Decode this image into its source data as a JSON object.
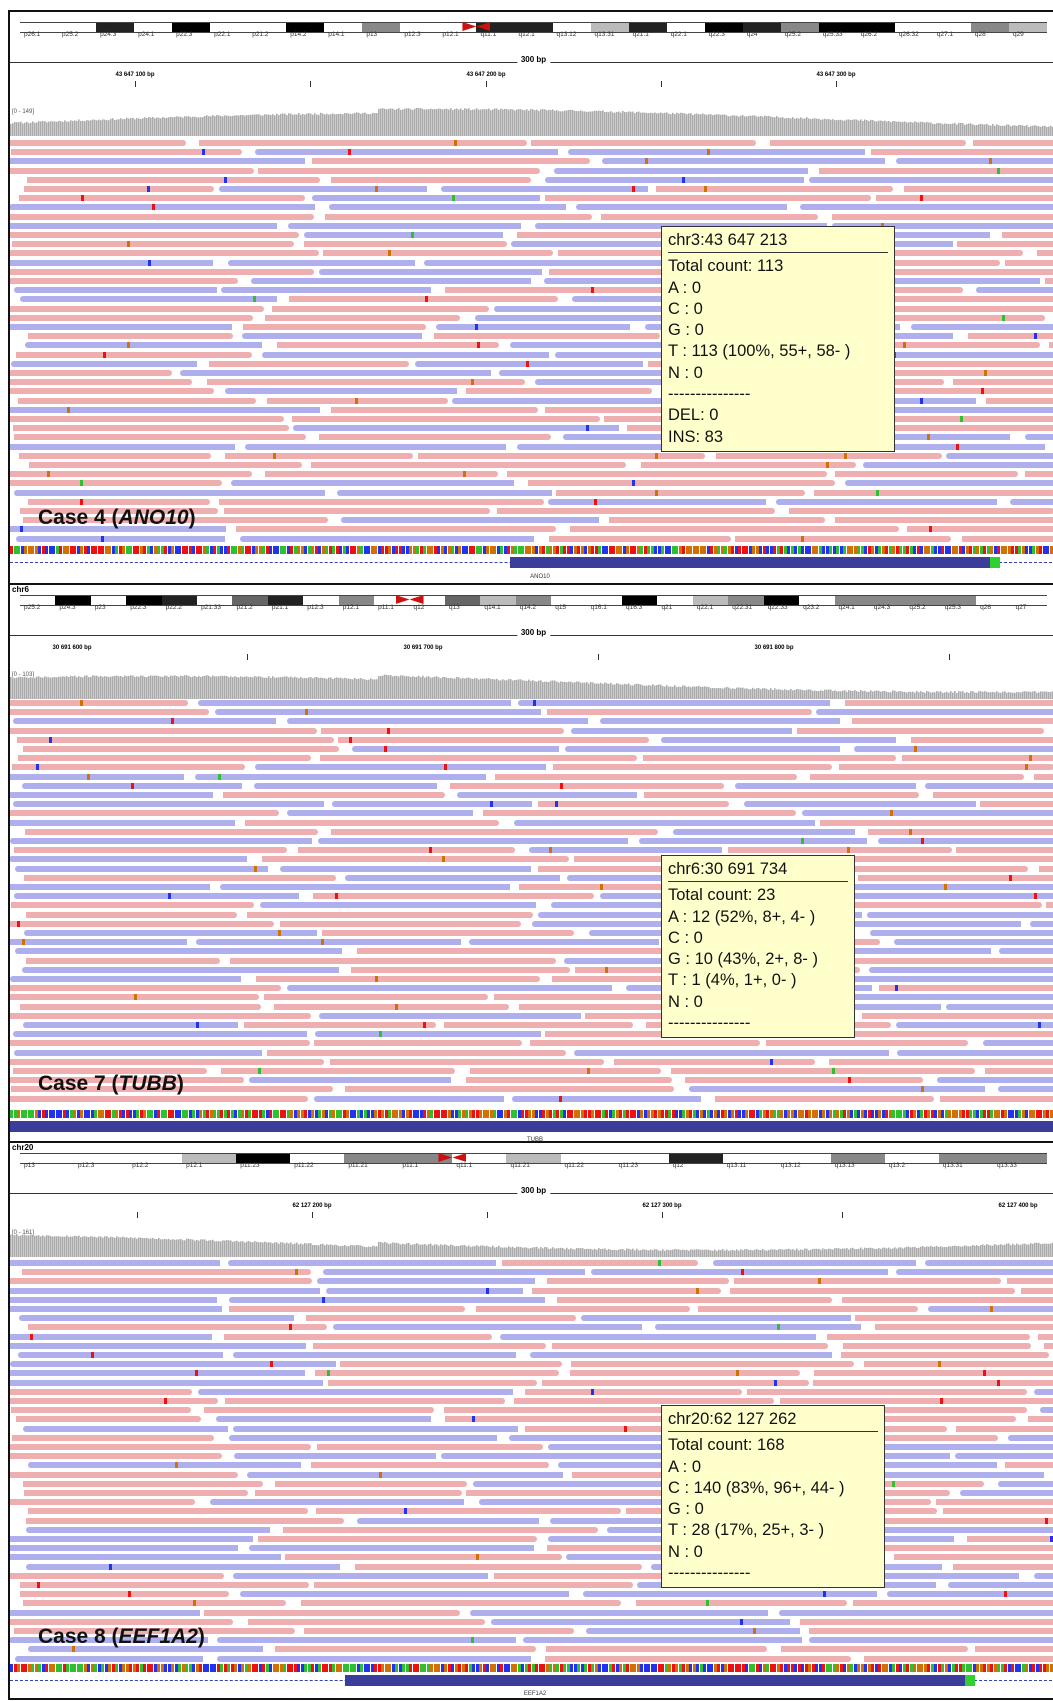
{
  "panels": [
    {
      "chromosome": "",
      "bands": [
        "p26.1",
        "p25.2",
        "p24.3",
        "p24.1",
        "p22.3",
        "p22.1",
        "p21.2",
        "p14.2",
        "p14.1",
        "p13",
        "p12.3",
        "p12.1",
        "q11.1",
        "q12.1",
        "q13.12",
        "q13.31",
        "q21.1",
        "q22.1",
        "q22.3",
        "q24",
        "q25.2",
        "q25.33",
        "q26.2",
        "q26.32",
        "q27.1",
        "q28",
        "q29"
      ],
      "window": "300 bp",
      "positions": [
        "43 647 100 bp",
        "43 647 200 bp",
        "43 647 300 bp"
      ],
      "coverage_range": "[0 - 149]",
      "case": {
        "prefix": "Case 4 (",
        "gene": "ANO10",
        "suffix": ")"
      },
      "gene_label": "ANO10",
      "popup": {
        "position": "chr3:43 647 213",
        "lines": [
          "Total count: 113",
          "A : 0",
          "C : 0",
          "G : 0",
          "T : 113 (100%, 55+, 58- )",
          "N : 0",
          "---------------",
          "DEL: 0",
          "INS: 83"
        ]
      },
      "seed": 11
    },
    {
      "chromosome": "chr6",
      "bands": [
        "p25.2",
        "p24.3",
        "p23",
        "p22.3",
        "p22.2",
        "p21.33",
        "p21.2",
        "p21.1",
        "p12.3",
        "p12.1",
        "p11.1",
        "q12",
        "q13",
        "q14.1",
        "q14.2",
        "q15",
        "q16.1",
        "q16.3",
        "q21",
        "q22.1",
        "q22.31",
        "q22.33",
        "q23.2",
        "q24.1",
        "q24.3",
        "q25.2",
        "q25.3",
        "q26",
        "q27"
      ],
      "window": "300 bp",
      "positions": [
        "30 691 600 bp",
        "30 691 700 bp",
        "30 691 800 bp"
      ],
      "coverage_range": "[0 - 103]",
      "case": {
        "prefix": "Case 7 (",
        "gene": "TUBB",
        "suffix": ")"
      },
      "gene_label": "TUBB",
      "popup": {
        "position": "chr6:30 691 734",
        "lines": [
          "Total count: 23",
          "A : 12 (52%, 8+, 4- )",
          "C : 0",
          "G : 10 (43%, 2+, 8- )",
          "T : 1 (4%, 1+, 0- )",
          "N : 0",
          "---------------"
        ]
      },
      "seed": 27
    },
    {
      "chromosome": "chr20",
      "bands": [
        "p13",
        "p12.3",
        "p12.2",
        "p12.1",
        "p11.23",
        "p11.22",
        "p11.21",
        "p11.1",
        "q11.1",
        "q11.21",
        "q11.22",
        "q11.23",
        "q12",
        "q13.11",
        "q13.12",
        "q13.13",
        "q13.2",
        "q13.31",
        "q13.33"
      ],
      "window": "300 bp",
      "positions": [
        "62 127 200 bp",
        "62 127 300 bp",
        "62 127 400 bp"
      ],
      "coverage_range": "[0 - 161]",
      "case": {
        "prefix": "Case 8 (",
        "gene": "EEF1A2",
        "suffix": ")"
      },
      "gene_label": "EEF1A2",
      "popup": {
        "position": "chr20:62 127 262",
        "lines": [
          "Total count: 168",
          "A : 0",
          "C : 140 (83%, 96+, 44- )",
          "G : 0",
          "T : 28 (17%, 25+, 3- )",
          "N : 0",
          "---------------"
        ]
      },
      "seed": 53
    }
  ],
  "colors": {
    "forward_read": "#efaeb0",
    "reverse_read": "#afafee",
    "popup_bg": "#ffffcc",
    "base_A": "#2ec02e",
    "base_C": "#2233ee",
    "base_G": "#d17105",
    "base_T": "#ee1111",
    "centromere": "#cc1111"
  }
}
